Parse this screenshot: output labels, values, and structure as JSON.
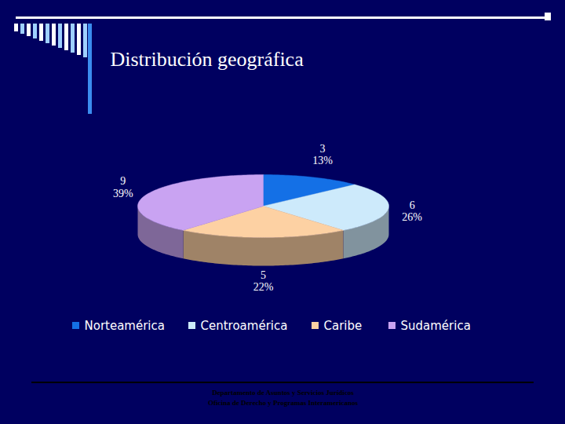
{
  "chart_data": {
    "type": "pie",
    "title": "Distribución geográfica",
    "categories": [
      "Norteamérica",
      "Centroamérica",
      "Caribe",
      "Sudamérica"
    ],
    "values": [
      3,
      6,
      5,
      9
    ],
    "percentages": [
      13,
      26,
      22,
      39
    ],
    "percentage_labels": [
      "13%",
      "26%",
      "22%",
      "39%"
    ],
    "colors": [
      "#1470e6",
      "#cdeafb",
      "#fdd1a3",
      "#c9a3f2"
    ],
    "data_labels": true,
    "legend": "bottom",
    "annotations": [
      "Departamento de Asuntos y Servicios Jurídicos",
      "Oficina de Derecho y Programas Interamericanos"
    ]
  }
}
